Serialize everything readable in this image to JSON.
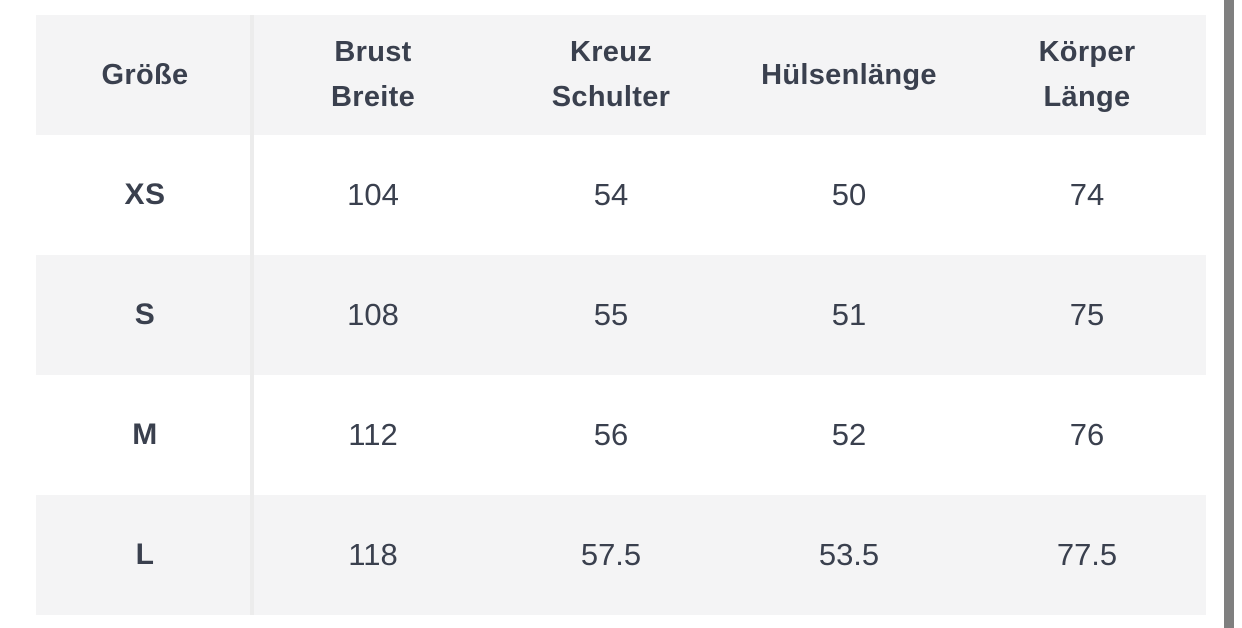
{
  "colors": {
    "page_background": "#ffffff",
    "stripe_background": "#f4f4f5",
    "text": "#3a404e",
    "column_divider": "#ececec",
    "scrollbar": "#7f7f7f"
  },
  "size_chart": {
    "columns": [
      {
        "label": "Größe"
      },
      {
        "label": "Brust\nBreite"
      },
      {
        "label": "Kreuz\nSchulter"
      },
      {
        "label": "Hülsenlänge"
      },
      {
        "label": "Körper\nLänge"
      }
    ],
    "rows": [
      {
        "size": "XS",
        "values": [
          "104",
          "54",
          "50",
          "74"
        ]
      },
      {
        "size": "S",
        "values": [
          "108",
          "55",
          "51",
          "75"
        ]
      },
      {
        "size": "M",
        "values": [
          "112",
          "56",
          "52",
          "76"
        ]
      },
      {
        "size": "L",
        "values": [
          "118",
          "57.5",
          "53.5",
          "77.5"
        ]
      }
    ]
  }
}
